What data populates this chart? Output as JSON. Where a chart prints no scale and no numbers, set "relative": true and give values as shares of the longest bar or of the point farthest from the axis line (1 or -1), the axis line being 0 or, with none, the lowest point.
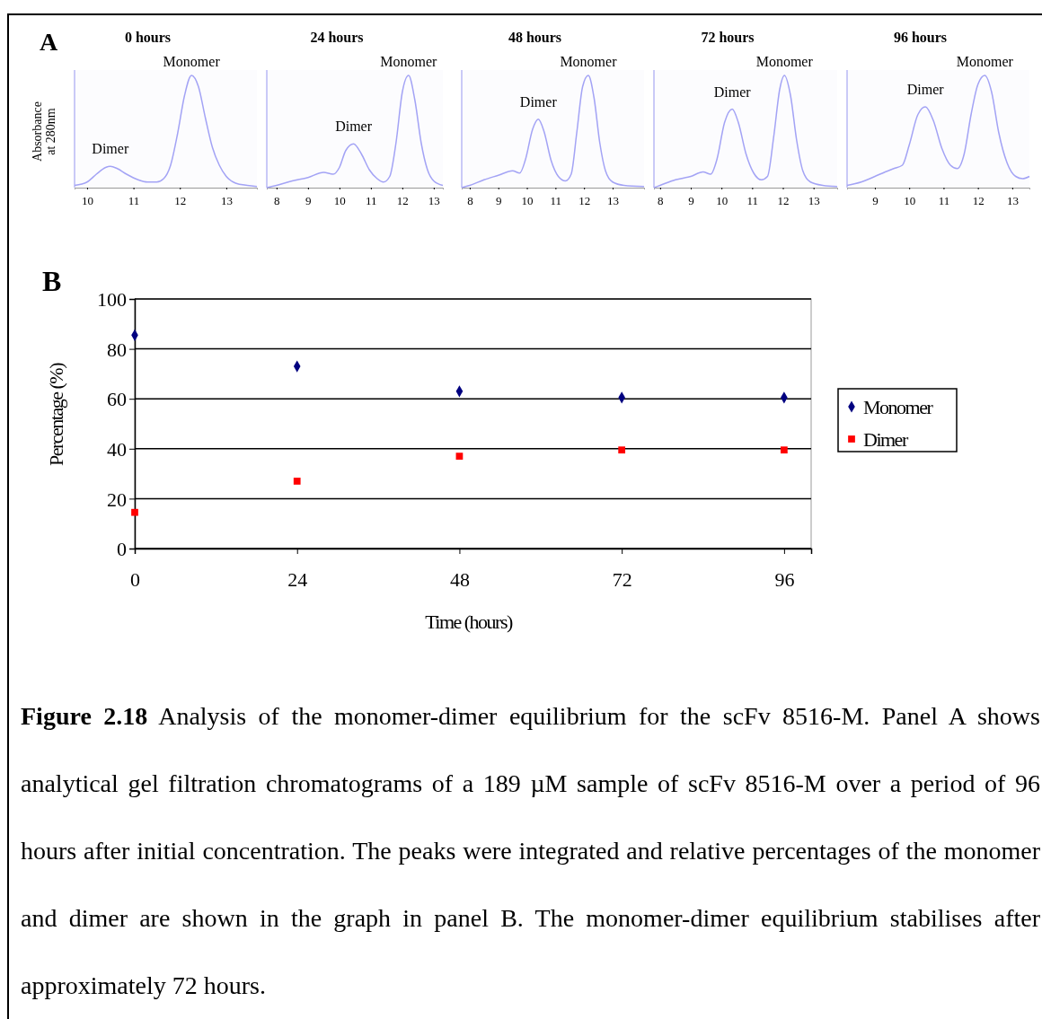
{
  "chart_data": [
    {
      "type": "line",
      "title": "0 hours",
      "ylabel": "Absorbance at 280nm",
      "relative": true,
      "xlim": [
        9.73,
        13.66
      ],
      "xticks": [
        10,
        11,
        12,
        13
      ],
      "annotations": [
        "A",
        {
          "text": "Dimer",
          "x": 10.5,
          "y": 0.19
        },
        {
          "text": "Monomer",
          "x": 12.25,
          "y": 1
        }
      ],
      "series": [
        {
          "color": "#a3a3f5",
          "x": [
            9.73,
            10.0,
            10.2,
            10.4,
            10.5,
            10.65,
            10.85,
            11.1,
            11.3,
            11.5,
            11.65,
            11.8,
            11.95,
            12.1,
            12.25,
            12.4,
            12.55,
            12.7,
            12.85,
            13.0,
            13.2,
            13.45,
            13.66
          ],
          "values": [
            0.02,
            0.05,
            0.12,
            0.18,
            0.19,
            0.17,
            0.12,
            0.07,
            0.05,
            0.05,
            0.08,
            0.2,
            0.48,
            0.82,
            1.0,
            0.9,
            0.62,
            0.36,
            0.2,
            0.1,
            0.04,
            0.02,
            0.01
          ]
        }
      ]
    },
    {
      "type": "line",
      "title": "24 hours",
      "relative": true,
      "xlim": [
        7.69,
        13.29
      ],
      "xticks": [
        8,
        9,
        10,
        11,
        12,
        13
      ],
      "annotations": [
        {
          "text": "Dimer",
          "x": 10.45,
          "y": 0.39
        },
        {
          "text": "Monomer",
          "x": 12.2,
          "y": 1
        }
      ],
      "series": [
        {
          "color": "#a3a3f5",
          "x": [
            7.69,
            8.0,
            8.5,
            9.0,
            9.5,
            9.8,
            10.0,
            10.2,
            10.45,
            10.7,
            10.95,
            11.2,
            11.4,
            11.6,
            11.8,
            12.0,
            12.2,
            12.4,
            12.6,
            12.8,
            13.0,
            13.29
          ],
          "values": [
            0,
            0.02,
            0.06,
            0.09,
            0.136,
            0.12,
            0.18,
            0.33,
            0.39,
            0.3,
            0.16,
            0.08,
            0.05,
            0.1,
            0.4,
            0.85,
            1.0,
            0.78,
            0.4,
            0.16,
            0.06,
            0.02
          ]
        }
      ]
    },
    {
      "type": "line",
      "title": "48 hours",
      "relative": true,
      "xlim": [
        7.72,
        14.1
      ],
      "xticks": [
        8,
        9,
        10,
        11,
        12,
        13
      ],
      "annotations": [
        {
          "text": "Dimer",
          "x": 10.4,
          "y": 0.61
        },
        {
          "text": "Monomer",
          "x": 12.15,
          "y": 1
        }
      ],
      "series": [
        {
          "color": "#a3a3f5",
          "x": [
            7.72,
            8.0,
            8.5,
            9.0,
            9.5,
            9.75,
            9.95,
            10.2,
            10.4,
            10.6,
            10.85,
            11.1,
            11.35,
            11.55,
            11.75,
            11.95,
            12.15,
            12.35,
            12.55,
            12.75,
            13.0,
            13.4,
            14.1
          ],
          "values": [
            0,
            0.02,
            0.07,
            0.11,
            0.15,
            0.13,
            0.25,
            0.52,
            0.61,
            0.5,
            0.24,
            0.1,
            0.06,
            0.12,
            0.5,
            0.9,
            1.0,
            0.8,
            0.4,
            0.15,
            0.05,
            0.02,
            0.01
          ]
        }
      ]
    },
    {
      "type": "line",
      "title": "72 hours",
      "relative": true,
      "xlim": [
        7.8,
        13.77
      ],
      "xticks": [
        8,
        9,
        10,
        11,
        12,
        13
      ],
      "annotations": [
        {
          "text": "Dimer",
          "x": 10.35,
          "y": 0.7
        },
        {
          "text": "Monomer",
          "x": 12.05,
          "y": 1
        }
      ],
      "series": [
        {
          "color": "#a3a3f5",
          "x": [
            7.8,
            8.0,
            8.5,
            9.0,
            9.4,
            9.65,
            9.85,
            10.1,
            10.35,
            10.55,
            10.8,
            11.05,
            11.3,
            11.5,
            11.7,
            11.9,
            12.05,
            12.25,
            12.45,
            12.65,
            12.9,
            13.3,
            13.77
          ],
          "values": [
            0,
            0.02,
            0.07,
            0.1,
            0.14,
            0.12,
            0.25,
            0.58,
            0.7,
            0.58,
            0.3,
            0.13,
            0.07,
            0.1,
            0.45,
            0.88,
            1.0,
            0.82,
            0.42,
            0.15,
            0.05,
            0.02,
            0.01
          ]
        }
      ]
    },
    {
      "type": "line",
      "title": "96 hours",
      "relative": true,
      "xlim": [
        8.19,
        13.5
      ],
      "xticks": [
        9,
        10,
        11,
        12,
        13
      ],
      "annotations": [
        {
          "text": "Dimer",
          "x": 10.47,
          "y": 0.72
        },
        {
          "text": "Monomer",
          "x": 12.2,
          "y": 1
        }
      ],
      "series": [
        {
          "color": "#a3a3f5",
          "x": [
            8.19,
            8.6,
            9.0,
            9.3,
            9.55,
            9.8,
            10.0,
            10.25,
            10.47,
            10.7,
            10.95,
            11.2,
            11.4,
            11.6,
            11.8,
            12.0,
            12.2,
            12.4,
            12.6,
            12.85,
            13.1,
            13.3,
            13.5
          ],
          "values": [
            0.02,
            0.05,
            0.1,
            0.14,
            0.17,
            0.2,
            0.38,
            0.65,
            0.72,
            0.6,
            0.35,
            0.2,
            0.17,
            0.3,
            0.65,
            0.92,
            1.0,
            0.85,
            0.5,
            0.22,
            0.1,
            0.08,
            0.1
          ]
        }
      ]
    },
    {
      "type": "scatter",
      "xlabel": "Time (hours)",
      "ylabel": "Percentage (%)",
      "x": [
        0,
        24,
        48,
        72,
        96
      ],
      "xlim": [
        0,
        100
      ],
      "xticks": [
        0,
        24,
        48,
        72,
        96
      ],
      "ylim": [
        0,
        100
      ],
      "yticks": [
        0,
        20,
        40,
        60,
        80,
        100
      ],
      "grid": "y",
      "legend": "right",
      "annotations": [
        "B",
        "Figure 2.18",
        "Analysis of the monomer-dimer equilibrium for the scFv 8516-M. Panel A shows analytical gel filtration chromatograms of a 189 µM sample of scFv 8516-M over a period of 96 hours after initial concentration. The peaks were integrated and relative percentages of the monomer and dimer are shown in the graph in panel B. The monomer-dimer equilibrium stabilises after approximately 72 hours."
      ],
      "series": [
        {
          "name": "Monomer",
          "color": "#000080",
          "marker": "diamond",
          "values": [
            85.5,
            73,
            63,
            60.5,
            60.5
          ]
        },
        {
          "name": "Dimer",
          "color": "#ff0000",
          "marker": "square",
          "values": [
            14.5,
            27,
            37,
            39.5,
            39.5
          ]
        }
      ]
    }
  ]
}
